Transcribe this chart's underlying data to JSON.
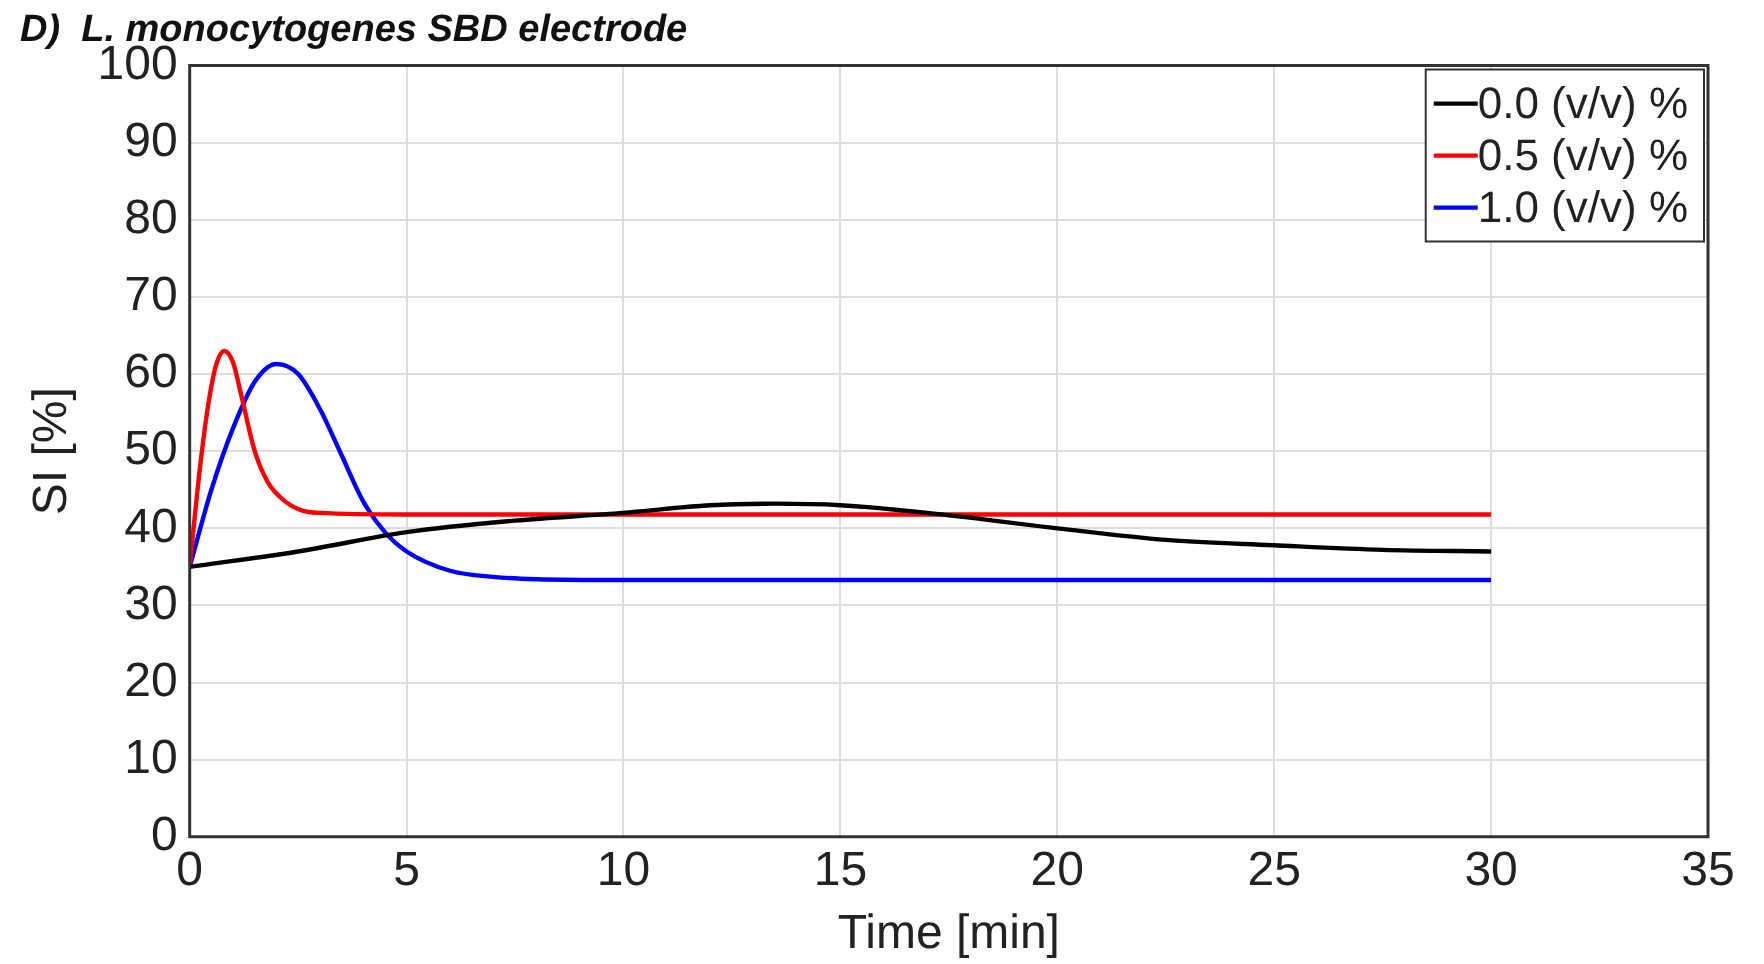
{
  "chart_data": {
    "type": "line",
    "title": "D)  L. monocytogenes SBD electrode",
    "xlabel": "Time [min]",
    "ylabel": "SI [%]",
    "xlim": [
      0,
      35
    ],
    "xticks": [
      0,
      5,
      10,
      15,
      20,
      25,
      30,
      35
    ],
    "ylim": [
      0,
      100
    ],
    "yticks": [
      0,
      10,
      20,
      30,
      40,
      50,
      60,
      70,
      80,
      90,
      100
    ],
    "grid": true,
    "legend": "top right",
    "marker": "none",
    "line_style": "solid",
    "series": [
      {
        "name": "0.0 (v/v) %",
        "color": "#000000",
        "x": [
          0,
          2.5,
          5,
          7.5,
          10,
          12,
          13.5,
          15,
          17,
          20,
          22.5,
          25,
          27.5,
          30
        ],
        "values": [
          35,
          37,
          39.5,
          41,
          42,
          43,
          43.2,
          43,
          42,
          40,
          38.5,
          37.8,
          37.2,
          37
        ]
      },
      {
        "name": "0.5 (v/v) %",
        "color": "#ff0000",
        "x": [
          0,
          0.2,
          0.4,
          0.6,
          0.8,
          1,
          1.2,
          1.5,
          1.8,
          2.2,
          2.6,
          3,
          5,
          10,
          20,
          30
        ],
        "values": [
          35,
          46,
          55,
          61,
          63,
          61.5,
          57,
          50,
          46,
          43.5,
          42.3,
          42,
          41.8,
          41.8,
          41.8,
          41.8
        ]
      },
      {
        "name": "1.0 (v/v) %",
        "color": "#0000ff",
        "x": [
          0,
          0.5,
          1,
          1.5,
          2,
          2.5,
          3,
          3.5,
          4,
          4.5,
          5,
          6,
          7,
          8,
          10,
          20,
          30
        ],
        "values": [
          35,
          45,
          53,
          59,
          61.3,
          60,
          55.5,
          49.5,
          43.5,
          39.5,
          37,
          34.5,
          33.7,
          33.4,
          33.3,
          33.3,
          33.3
        ]
      }
    ]
  }
}
